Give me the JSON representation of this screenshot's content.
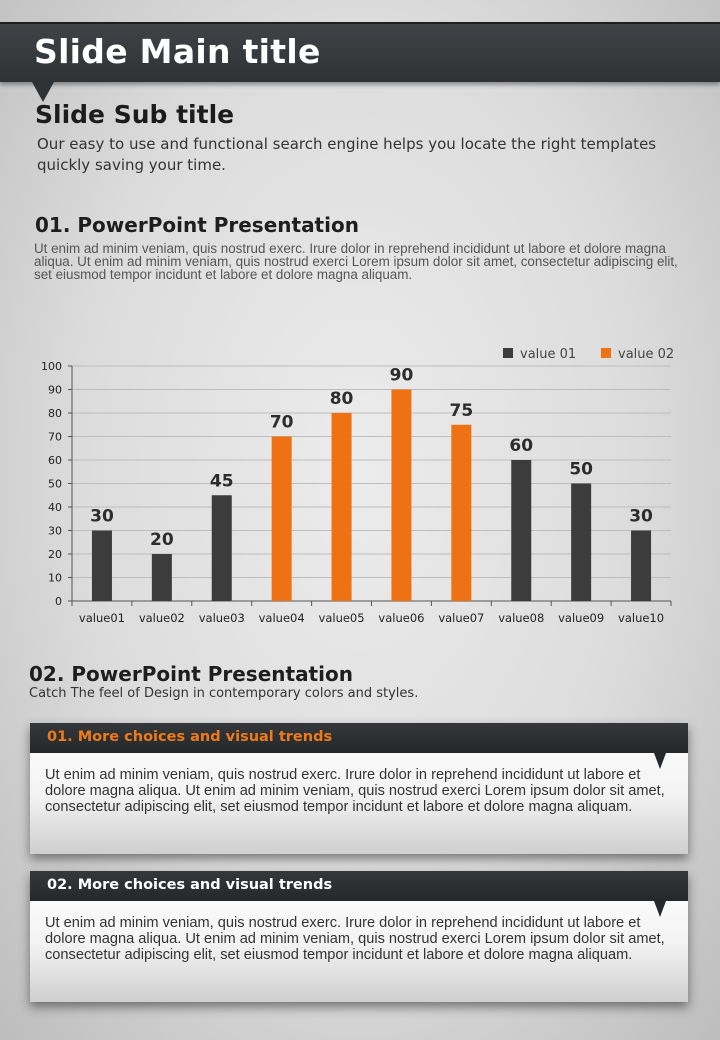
{
  "slide": {
    "main_title": "Slide Main title",
    "sub_title": "Slide Sub title",
    "sub_description": "Our easy to use and functional search engine helps you locate the right templates quickly saving your time."
  },
  "section1": {
    "title": "01. PowerPoint Presentation",
    "body": "Ut enim ad minim veniam, quis nostrud exerc. Irure dolor in reprehend incididunt ut labore et dolore magna aliqua. Ut enim ad minim veniam, quis nostrud exerci  Lorem ipsum dolor sit amet, consectetur adipiscing elit, set eiusmod tempor incidunt et labore et dolore magna aliquam."
  },
  "chart_data": {
    "type": "bar",
    "title": "",
    "xlabel": "",
    "ylabel": "",
    "ylim": [
      0,
      100
    ],
    "yticks": [
      0,
      10,
      20,
      30,
      40,
      50,
      60,
      70,
      80,
      90,
      100
    ],
    "grid": true,
    "legend_position": "top-right",
    "categories": [
      "value01",
      "value02",
      "value03",
      "value04",
      "value05",
      "value06",
      "value07",
      "value08",
      "value09",
      "value10"
    ],
    "values": [
      30,
      20,
      45,
      70,
      80,
      90,
      75,
      60,
      50,
      30
    ],
    "series_assignment": [
      "value 01",
      "value 01",
      "value 01",
      "value 02",
      "value 02",
      "value 02",
      "value 02",
      "value 01",
      "value 01",
      "value 01"
    ],
    "series": [
      {
        "name": "value 01",
        "color": "#3c3c3c"
      },
      {
        "name": "value 02",
        "color": "#ee7213"
      }
    ]
  },
  "section2": {
    "title": "02. PowerPoint Presentation",
    "subtitle": "Catch The feel of Design in contemporary colors and styles."
  },
  "boxes": [
    {
      "title": "01. More choices and visual trends",
      "title_color": "#ee7a1a",
      "body": "Ut enim ad minim veniam, quis nostrud exerc. Irure dolor in reprehend incididunt ut labore et dolore magna aliqua. Ut enim ad minim veniam, quis nostrud exerci  Lorem ipsum dolor sit amet, consectetur adipiscing elit, set eiusmod tempor incidunt et labore et dolore magna aliquam."
    },
    {
      "title": "02. More choices and visual trends",
      "title_color": "#ffffff",
      "body": "Ut enim ad minim veniam, quis nostrud exerc. Irure dolor in reprehend incididunt ut labore et dolore magna aliqua. Ut enim ad minim veniam, quis nostrud exerci  Lorem ipsum dolor sit amet, consectetur adipiscing elit, set eiusmod tempor incidunt et labore et dolore magna aliquam."
    }
  ]
}
